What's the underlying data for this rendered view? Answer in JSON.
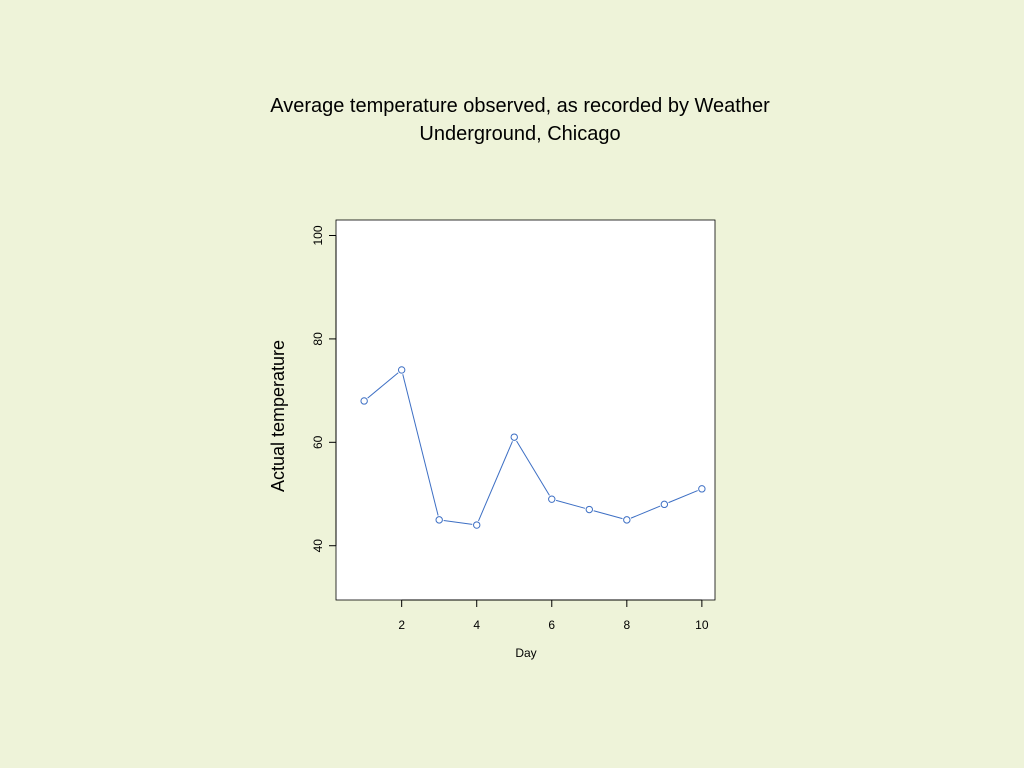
{
  "chart_data": {
    "type": "line",
    "title_lines": [
      "Average temperature observed, as recorded by Weather",
      "Underground, Chicago"
    ],
    "xlabel": "Day",
    "ylabel": "Actual temperature",
    "x": [
      1,
      2,
      3,
      4,
      5,
      6,
      7,
      8,
      9,
      10
    ],
    "y": [
      68,
      74,
      45,
      44,
      61,
      49,
      47,
      45,
      48,
      51
    ],
    "xlim": [
      0.25,
      10.35
    ],
    "ylim": [
      29.5,
      103
    ],
    "x_ticks": [
      2,
      4,
      6,
      8,
      10
    ],
    "y_ticks": [
      40,
      60,
      80,
      100
    ],
    "markers": "open-circle",
    "grid": false,
    "colors": {
      "background": "#eef3d9",
      "plot_background": "#ffffff",
      "series": "#3d6fc4",
      "axis": "#000000"
    }
  }
}
